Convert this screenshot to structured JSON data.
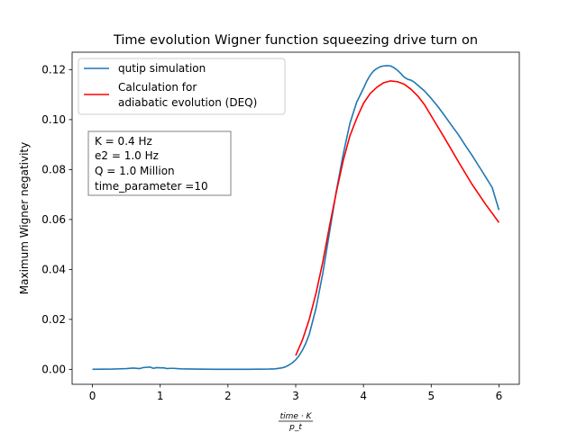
{
  "chart_data": {
    "type": "line",
    "title": "Time evolution Wigner function squeezing drive turn on",
    "xlabel": "time·K / p_t",
    "xlabel_num": "time · K",
    "xlabel_den": "p_t",
    "ylabel": "Maximum Wigner negativity",
    "xlim": [
      -0.3,
      6.3
    ],
    "ylim": [
      -0.006,
      0.127
    ],
    "xticks": [
      0,
      1,
      2,
      3,
      4,
      5,
      6
    ],
    "yticks": [
      0.0,
      0.02,
      0.04,
      0.06,
      0.08,
      0.1,
      0.12
    ],
    "ytick_labels": [
      "0.00",
      "0.02",
      "0.04",
      "0.06",
      "0.08",
      "0.10",
      "0.12"
    ],
    "grid": false,
    "legend_position": "top-left",
    "series": [
      {
        "name": "qutip simulation",
        "color": "#1f77b4",
        "x": [
          0.0,
          0.3,
          0.5,
          0.6,
          0.7,
          0.75,
          0.8,
          0.85,
          0.9,
          0.95,
          1.0,
          1.05,
          1.1,
          1.15,
          1.2,
          1.3,
          1.5,
          1.8,
          2.0,
          2.3,
          2.6,
          2.7,
          2.8,
          2.85,
          2.9,
          2.95,
          3.0,
          3.05,
          3.1,
          3.15,
          3.2,
          3.3,
          3.4,
          3.5,
          3.6,
          3.7,
          3.8,
          3.9,
          4.0,
          4.05,
          4.1,
          4.15,
          4.2,
          4.25,
          4.3,
          4.35,
          4.4,
          4.45,
          4.5,
          4.55,
          4.6,
          4.65,
          4.7,
          4.75,
          4.8,
          4.9,
          5.0,
          5.1,
          5.2,
          5.3,
          5.4,
          5.5,
          5.6,
          5.7,
          5.8,
          5.9,
          6.0
        ],
        "y": [
          0.0,
          0.0001,
          0.0003,
          0.0005,
          0.0003,
          0.0007,
          0.0008,
          0.0009,
          0.0004,
          0.0007,
          0.0006,
          0.0006,
          0.0003,
          0.0004,
          0.0004,
          0.0002,
          0.0001,
          0.0,
          0.0,
          0.0,
          0.0001,
          0.0002,
          0.0006,
          0.001,
          0.0017,
          0.0026,
          0.0038,
          0.0055,
          0.0077,
          0.0105,
          0.014,
          0.0245,
          0.0385,
          0.055,
          0.0715,
          0.086,
          0.0985,
          0.107,
          0.1125,
          0.1155,
          0.1178,
          0.1195,
          0.1205,
          0.1212,
          0.1215,
          0.1216,
          0.1215,
          0.1208,
          0.1198,
          0.1185,
          0.117,
          0.1162,
          0.1158,
          0.115,
          0.1138,
          0.1115,
          0.1085,
          0.1052,
          0.1015,
          0.0977,
          0.094,
          0.0898,
          0.0858,
          0.0815,
          0.0772,
          0.0728,
          0.0638
        ]
      },
      {
        "name": "Calculation for\nadiabatic evolution (DEQ)",
        "name_lines": [
          "Calculation for",
          "adiabatic evolution (DEQ)"
        ],
        "color": "#ff0000",
        "x": [
          3.0,
          3.1,
          3.2,
          3.3,
          3.4,
          3.5,
          3.6,
          3.7,
          3.8,
          3.9,
          4.0,
          4.1,
          4.2,
          4.3,
          4.4,
          4.5,
          4.6,
          4.7,
          4.8,
          4.9,
          5.0,
          5.2,
          5.4,
          5.6,
          5.8,
          6.0
        ],
        "y": [
          0.0055,
          0.0118,
          0.02,
          0.0305,
          0.043,
          0.0575,
          0.071,
          0.0835,
          0.0935,
          0.1005,
          0.1065,
          0.1105,
          0.113,
          0.1148,
          0.1155,
          0.1152,
          0.1142,
          0.1122,
          0.1095,
          0.106,
          0.1015,
          0.0925,
          0.0832,
          0.0742,
          0.0662,
          0.0588
        ]
      }
    ],
    "annotation_lines": [
      "K = 0.4 Hz",
      "e2 = 1.0 Hz",
      "Q = 1.0 Million",
      "time_parameter =10"
    ]
  }
}
